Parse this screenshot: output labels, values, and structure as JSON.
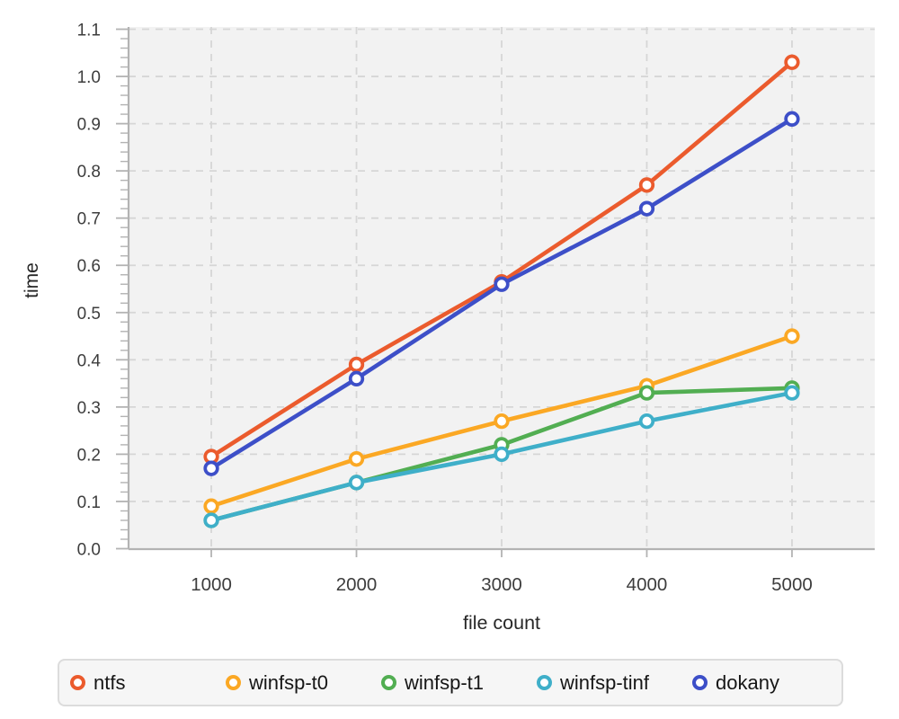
{
  "chart_data": {
    "type": "line",
    "title": "",
    "xlabel": "file count",
    "ylabel": "time",
    "x": [
      1000,
      2000,
      3000,
      4000,
      5000
    ],
    "xticks": [
      "1000",
      "2000",
      "3000",
      "4000",
      "5000"
    ],
    "yticks": [
      "0.0",
      "0.1",
      "0.2",
      "0.3",
      "0.4",
      "0.5",
      "0.6",
      "0.7",
      "0.8",
      "0.9",
      "1.0",
      "1.1"
    ],
    "ytick_minor_step": 0.02,
    "xlim": [
      430,
      5570
    ],
    "ylim": [
      0,
      1.1
    ],
    "grid": true,
    "legend_position": "bottom",
    "plot_bg_color": "#f2f2f2",
    "grid_color": "#d6d6d6",
    "axis_color": "#b3b3b3",
    "tick_label_color": "#3d3d3d",
    "axis_title_color": "#272727",
    "series": [
      {
        "name": "ntfs",
        "color": "#EB5B2D",
        "values": [
          0.195,
          0.39,
          0.565,
          0.77,
          1.03
        ]
      },
      {
        "name": "winfsp-t0",
        "color": "#FBA824",
        "values": [
          0.09,
          0.19,
          0.27,
          0.345,
          0.45
        ]
      },
      {
        "name": "winfsp-t1",
        "color": "#52AE52",
        "values": [
          0.06,
          0.14,
          0.22,
          0.33,
          0.34
        ]
      },
      {
        "name": "winfsp-tinf",
        "color": "#3FAFC9",
        "values": [
          0.06,
          0.14,
          0.2,
          0.27,
          0.33
        ]
      },
      {
        "name": "dokany",
        "color": "#3D4FC8",
        "values": [
          0.17,
          0.36,
          0.56,
          0.72,
          0.91
        ]
      }
    ]
  }
}
